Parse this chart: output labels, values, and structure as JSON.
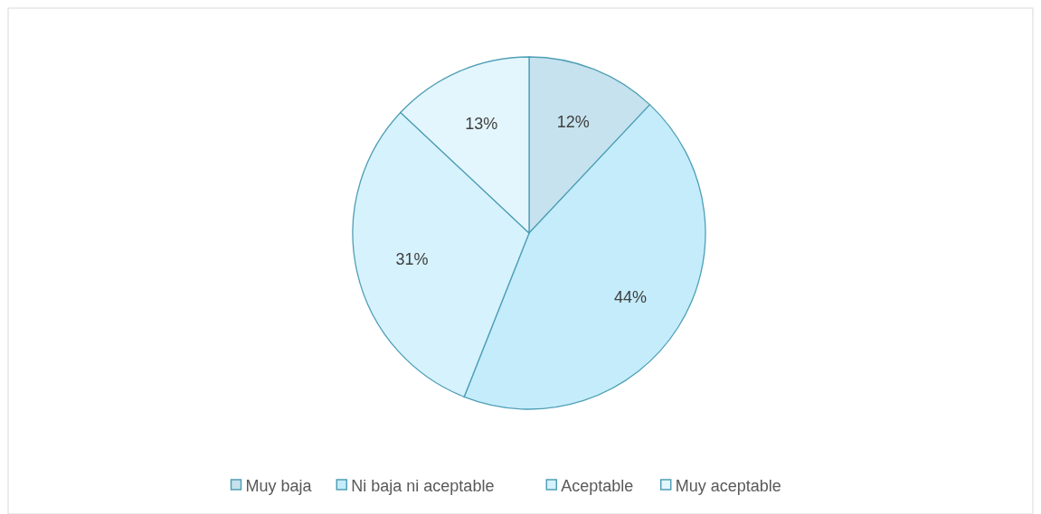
{
  "chart_data": {
    "type": "pie",
    "categories": [
      "Muy baja",
      "Ni baja ni aceptable",
      "Aceptable",
      "Muy aceptable"
    ],
    "values": [
      12,
      44,
      31,
      13
    ],
    "value_labels": [
      "12%",
      "44%",
      "31%",
      "13%"
    ],
    "colors": [
      "#c6e2ee",
      "#c4ecfb",
      "#d6f2fc",
      "#e4f6fd"
    ],
    "legend": "bottom"
  }
}
